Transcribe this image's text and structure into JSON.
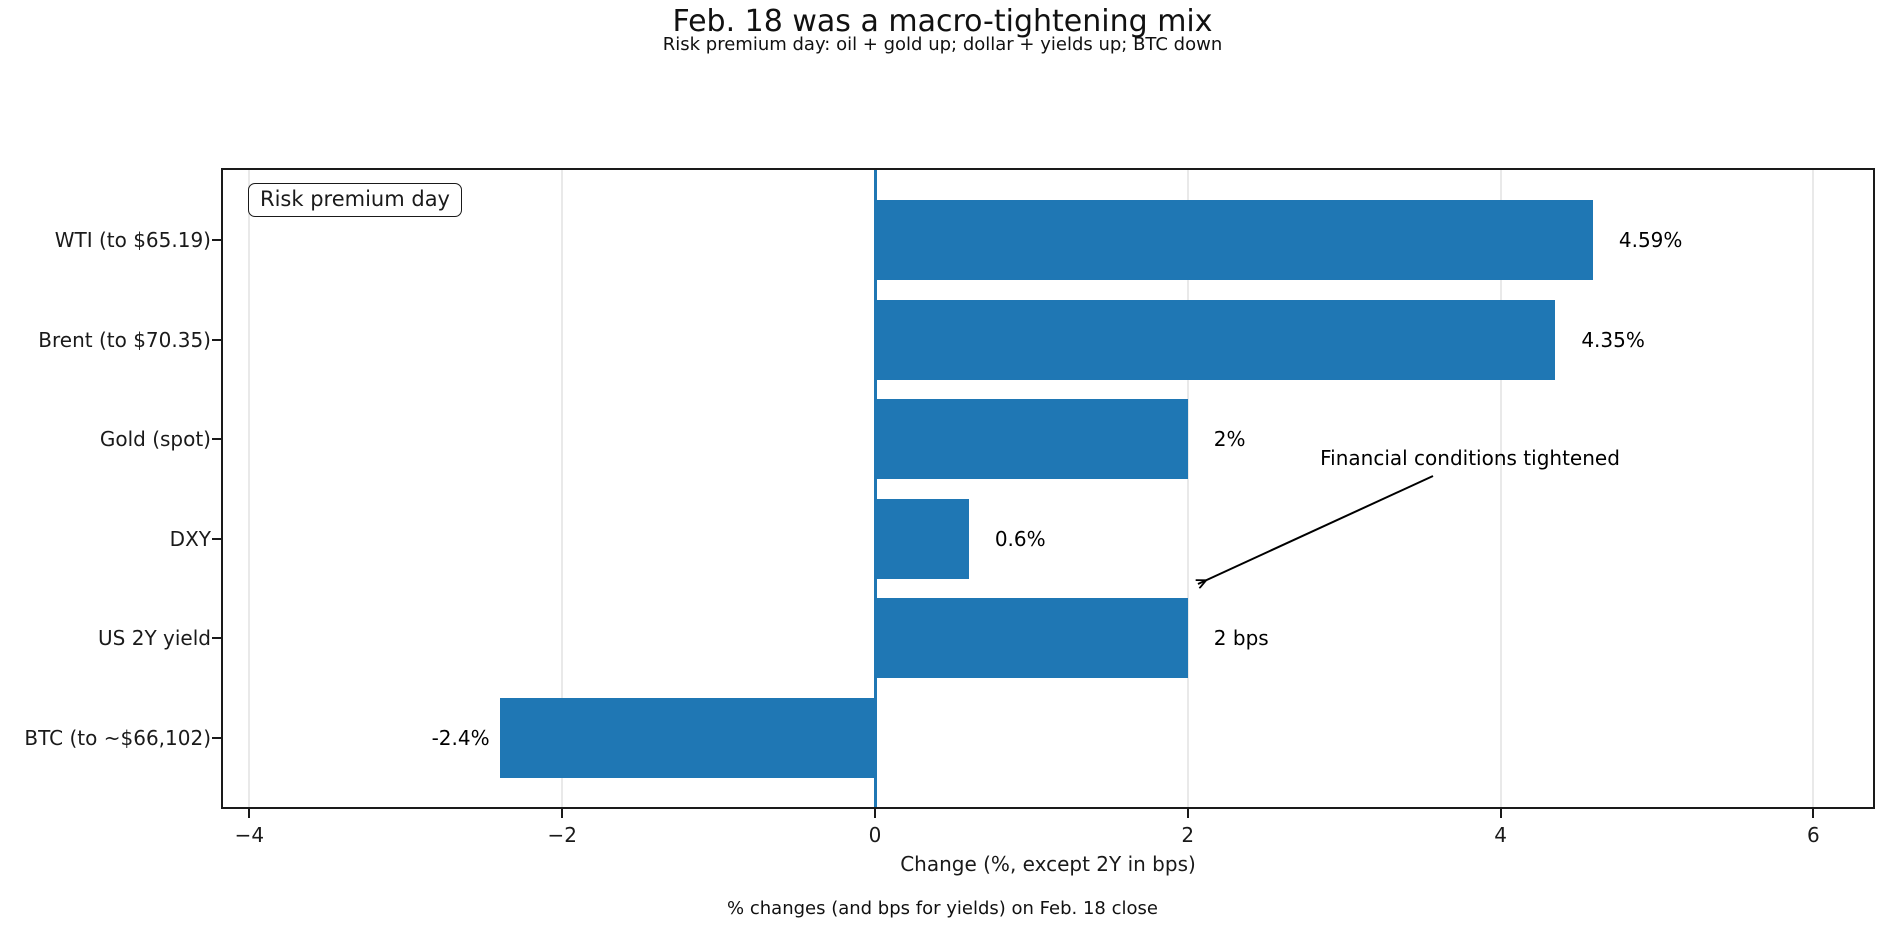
{
  "header": {
    "title": "Feb. 18 was a macro-tightening mix",
    "subtitle": "Risk premium day: oil + gold up; dollar + yields up; BTC down"
  },
  "footer": {
    "caption": "% changes (and bps for yields) on Feb. 18 close"
  },
  "chart_data": {
    "type": "bar",
    "orientation": "horizontal",
    "title": "Feb. 18 was a macro-tightening mix",
    "subtitle": "Risk premium day: oil + gold up; dollar + yields up; BTC down",
    "categories": [
      "WTI (to $65.19)",
      "Brent (to $70.35)",
      "Gold (spot)",
      "DXY",
      "US 2Y yield",
      "BTC (to ~$66,102)"
    ],
    "values": [
      4.59,
      4.35,
      2,
      0.6,
      2,
      -2.4
    ],
    "value_labels": [
      "4.59%",
      "4.35%",
      "2%",
      "0.6%",
      "2 bps",
      "-2.4%"
    ],
    "xlabel": "Change (%, except 2Y in bps)",
    "ylabel": "",
    "xlim": [
      -4.17,
      6.38
    ],
    "x_ticks": [
      -4,
      -2,
      0,
      2,
      4,
      6
    ],
    "x_tick_labels": [
      "−4",
      "−2",
      "0",
      "2",
      "4",
      "6"
    ],
    "grid": "vertical-light",
    "grid_color": "#e9e9e9",
    "bar_color": "#1f77b4",
    "zero_line_color": "#1f77b4",
    "legend": {
      "label": "Risk premium day",
      "position": "upper-left"
    },
    "annotation": {
      "text": "Financial conditions tightened",
      "points_to": "end of x=2 bars, between DXY and US 2Y yield rows"
    },
    "caption": "% changes (and bps for yields) on Feb. 18 close"
  }
}
